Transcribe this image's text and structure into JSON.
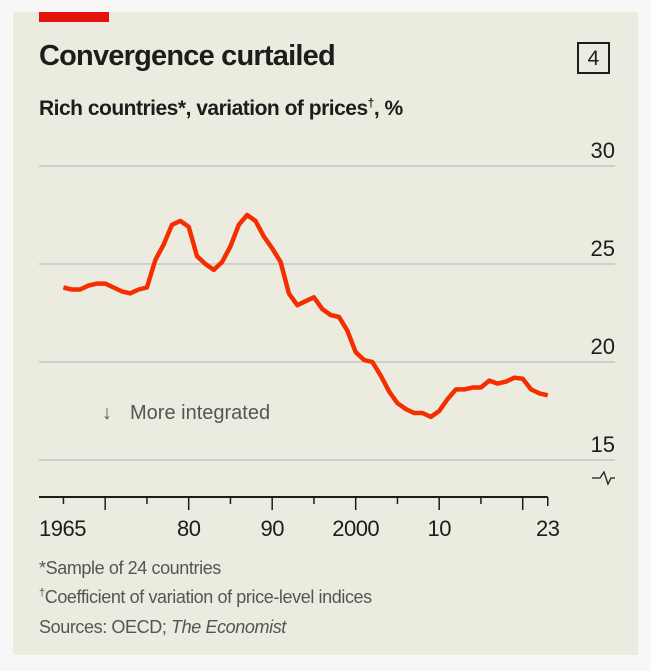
{
  "header": {
    "title": "Convergence curtailed",
    "chart_number": "4",
    "subtitle": "Rich countries",
    "subtitle_mark1": "*",
    "subtitle_mid": ", variation of prices",
    "subtitle_mark2": "†",
    "subtitle_end": ", %"
  },
  "annotation": {
    "arrow": "↓",
    "text": "More integrated"
  },
  "footnotes": {
    "note1": "*Sample of 24 countries",
    "note2_mark": "†",
    "note2": "Coefficient of variation of price-level indices",
    "sources_prefix": "Sources: OECD; ",
    "sources_italic": "The Economist"
  },
  "colors": {
    "line": "#f52e00",
    "accent": "#e3120b",
    "grid": "#c4c4c4",
    "background": "#ecebe0"
  },
  "chart_data": {
    "type": "line",
    "title": "Convergence curtailed",
    "ylabel": "Rich countries, variation of prices, %",
    "ylim": [
      15,
      30
    ],
    "yticks": [
      30,
      25,
      20,
      15
    ],
    "xlim": [
      1965,
      2023
    ],
    "xtick_labels": [
      {
        "year": 1965,
        "label": "1965"
      },
      {
        "year": 1980,
        "label": "80"
      },
      {
        "year": 1990,
        "label": "90"
      },
      {
        "year": 2000,
        "label": "2000"
      },
      {
        "year": 2010,
        "label": "10"
      },
      {
        "year": 2023,
        "label": "23"
      }
    ],
    "grid": true,
    "series": [
      {
        "name": "Coefficient of variation of prices",
        "x": [
          1965,
          1966,
          1967,
          1968,
          1969,
          1970,
          1971,
          1972,
          1973,
          1974,
          1975,
          1976,
          1977,
          1978,
          1979,
          1980,
          1981,
          1982,
          1983,
          1984,
          1985,
          1986,
          1987,
          1988,
          1989,
          1990,
          1991,
          1992,
          1993,
          1994,
          1995,
          1996,
          1997,
          1998,
          1999,
          2000,
          2001,
          2002,
          2003,
          2004,
          2005,
          2006,
          2007,
          2008,
          2009,
          2010,
          2011,
          2012,
          2013,
          2014,
          2015,
          2016,
          2017,
          2018,
          2019,
          2020,
          2021,
          2022,
          2023
        ],
        "y": [
          23.8,
          23.7,
          23.7,
          23.9,
          24.0,
          24.0,
          23.8,
          23.6,
          23.5,
          23.7,
          23.8,
          25.2,
          26.0,
          27.0,
          27.2,
          26.9,
          25.4,
          25.0,
          24.7,
          25.1,
          25.9,
          27.0,
          27.5,
          27.2,
          26.4,
          25.8,
          25.1,
          23.5,
          22.9,
          23.1,
          23.3,
          22.7,
          22.4,
          22.3,
          21.6,
          20.5,
          20.1,
          20.0,
          19.3,
          18.5,
          17.9,
          17.6,
          17.4,
          17.4,
          17.2,
          17.5,
          18.1,
          18.6,
          18.6,
          18.7,
          18.7,
          19.05,
          18.9,
          19.0,
          19.2,
          19.15,
          18.6,
          18.4,
          18.3
        ]
      }
    ]
  }
}
